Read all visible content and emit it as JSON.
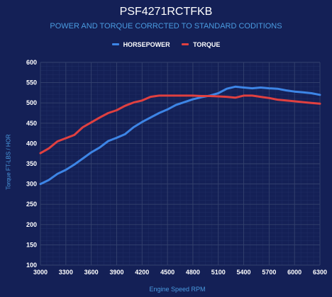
{
  "chart_data": {
    "type": "line",
    "title": "PSF4271RCTFKB",
    "subtitle": "POWER AND TORQUE CORRCTED TO STANDARD CODITIONS",
    "xlabel": "Engine Speed RPM",
    "ylabel": "Torque FT-LBS / HOR",
    "xlim": [
      3000,
      6300
    ],
    "ylim": [
      100,
      600
    ],
    "x_ticks": [
      3000,
      3300,
      3600,
      3900,
      4200,
      4500,
      4800,
      5100,
      5400,
      5700,
      6000,
      6300
    ],
    "y_ticks": [
      100,
      150,
      200,
      250,
      300,
      350,
      400,
      450,
      500,
      550,
      600
    ],
    "grid": true,
    "legend_position": "top",
    "series": [
      {
        "name": "HORSEPOWER",
        "color": "#3d85e6",
        "x": [
          3000,
          3100,
          3200,
          3300,
          3400,
          3500,
          3600,
          3700,
          3800,
          3900,
          4000,
          4100,
          4200,
          4300,
          4400,
          4500,
          4600,
          4700,
          4800,
          4900,
          5000,
          5100,
          5200,
          5300,
          5400,
          5500,
          5600,
          5700,
          5800,
          5900,
          6000,
          6100,
          6200,
          6300
        ],
        "values": [
          300,
          310,
          325,
          335,
          348,
          363,
          378,
          390,
          406,
          414,
          423,
          440,
          453,
          464,
          475,
          484,
          495,
          502,
          509,
          514,
          518,
          524,
          535,
          540,
          538,
          536,
          538,
          536,
          535,
          531,
          528,
          526,
          524,
          520
        ]
      },
      {
        "name": "TORQUE",
        "color": "#e04040",
        "x": [
          3000,
          3100,
          3200,
          3300,
          3400,
          3500,
          3600,
          3700,
          3800,
          3900,
          4000,
          4100,
          4200,
          4300,
          4400,
          4500,
          4600,
          4700,
          4800,
          4900,
          5000,
          5100,
          5200,
          5300,
          5400,
          5500,
          5600,
          5700,
          5800,
          5900,
          6000,
          6100,
          6200,
          6300
        ],
        "values": [
          376,
          388,
          405,
          413,
          421,
          440,
          452,
          464,
          475,
          482,
          493,
          501,
          506,
          515,
          518,
          518,
          518,
          518,
          518,
          517,
          517,
          516,
          515,
          513,
          518,
          518,
          515,
          512,
          508,
          506,
          504,
          502,
          500,
          498
        ]
      }
    ]
  },
  "colors": {
    "background": "#142056",
    "grid": "#34426e",
    "minor_grid": "#1f2c63",
    "accent": "#4a9be0"
  }
}
